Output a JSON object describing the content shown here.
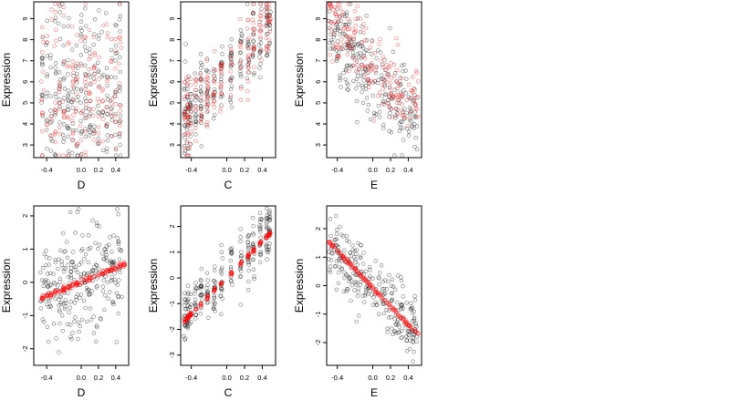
{
  "figure": {
    "colors": {
      "observed": "#000000",
      "fitted": "#ff0000",
      "frame": "#000000",
      "background": "#ffffff"
    }
  },
  "chart_data": [
    {
      "type": "scatter",
      "xlabel": "D",
      "ylabel": "Expression",
      "xlim": [
        -0.55,
        0.55
      ],
      "ylim": [
        2.4,
        9.8
      ],
      "xticks": [
        {
          "v": -0.4,
          "label": "-0.4"
        },
        {
          "v": 0.0,
          "label": "0.0"
        },
        {
          "v": 0.2,
          "label": "0.2"
        },
        {
          "v": 0.4,
          "label": "0.4"
        }
      ],
      "yticks": [
        {
          "v": 3,
          "label": "3"
        },
        {
          "v": 4,
          "label": "4"
        },
        {
          "v": 5,
          "label": "5"
        },
        {
          "v": 6,
          "label": "6"
        },
        {
          "v": 7,
          "label": "7"
        },
        {
          "v": 8,
          "label": "8"
        },
        {
          "v": 9,
          "label": "9"
        }
      ],
      "series": [
        {
          "role": "observed",
          "x_range": [
            -0.48,
            0.48
          ],
          "y_range": [
            2.6,
            9.4
          ],
          "x_levels": [
            -0.45,
            -0.4,
            -0.35,
            -0.3,
            -0.25,
            -0.2,
            -0.15,
            -0.1,
            -0.05,
            0.0,
            0.05,
            0.1,
            0.15,
            0.2,
            0.25,
            0.3,
            0.35,
            0.4,
            0.45
          ]
        },
        {
          "role": "fitted",
          "x_range": [
            -0.48,
            0.5
          ],
          "y_range": [
            4.3,
            9.3
          ],
          "x_levels": [
            -0.45,
            -0.4,
            -0.35,
            -0.3,
            -0.25,
            -0.2,
            -0.15,
            -0.1,
            -0.05,
            0.0,
            0.05,
            0.1,
            0.15,
            0.2,
            0.25,
            0.3,
            0.35,
            0.4,
            0.45
          ]
        }
      ]
    },
    {
      "type": "scatter",
      "xlabel": "C",
      "ylabel": "Expression",
      "xlim": [
        -0.52,
        0.55
      ],
      "ylim": [
        2.4,
        9.8
      ],
      "xticks": [
        {
          "v": -0.4,
          "label": "-0.4"
        },
        {
          "v": 0.0,
          "label": "0.0"
        },
        {
          "v": 0.2,
          "label": "0.2"
        },
        {
          "v": 0.4,
          "label": "0.4"
        }
      ],
      "yticks": [
        {
          "v": 3,
          "label": "3"
        },
        {
          "v": 4,
          "label": "4"
        },
        {
          "v": 5,
          "label": "5"
        },
        {
          "v": 6,
          "label": "6"
        },
        {
          "v": 7,
          "label": "7"
        },
        {
          "v": 8,
          "label": "8"
        },
        {
          "v": 9,
          "label": "9"
        }
      ],
      "series": [
        {
          "role": "observed",
          "x_levels": [
            -0.47,
            -0.44,
            -0.41,
            -0.35,
            -0.29,
            -0.22,
            -0.14,
            -0.06,
            0.05,
            0.16,
            0.24,
            0.3,
            0.38,
            0.45,
            0.48
          ],
          "trend": "increasing",
          "y_at_x_min": 4.4,
          "y_at_x_max": 8.6,
          "spread": 0.9
        },
        {
          "role": "fitted",
          "x_levels": [
            -0.47,
            -0.44,
            -0.41,
            -0.35,
            -0.29,
            -0.22,
            -0.14,
            -0.06,
            0.05,
            0.16,
            0.24,
            0.3,
            0.38,
            0.45,
            0.48
          ],
          "trend": "increasing",
          "y_at_x_min": 4.2,
          "y_at_x_max": 8.8,
          "spread": 0.9
        }
      ]
    },
    {
      "type": "scatter",
      "xlabel": "E",
      "ylabel": "Expression",
      "xlim": [
        -0.52,
        0.55
      ],
      "ylim": [
        2.4,
        9.8
      ],
      "xticks": [
        {
          "v": -0.4,
          "label": "-0.4"
        },
        {
          "v": 0.0,
          "label": "0.0"
        },
        {
          "v": 0.2,
          "label": "0.2"
        },
        {
          "v": 0.4,
          "label": "0.4"
        }
      ],
      "yticks": [
        {
          "v": 3,
          "label": "3"
        },
        {
          "v": 4,
          "label": "4"
        },
        {
          "v": 5,
          "label": "5"
        },
        {
          "v": 6,
          "label": "6"
        },
        {
          "v": 7,
          "label": "7"
        },
        {
          "v": 8,
          "label": "8"
        },
        {
          "v": 9,
          "label": "9"
        }
      ],
      "series": [
        {
          "role": "observed",
          "x_range": [
            -0.5,
            0.5
          ],
          "trend": "decreasing",
          "y_at_x_min": 8.6,
          "y_at_x_max": 4.0,
          "spread": 1.0
        },
        {
          "role": "fitted",
          "x_range": [
            -0.5,
            0.52
          ],
          "trend": "decreasing",
          "y_at_x_min": 8.8,
          "y_at_x_max": 4.6,
          "spread": 0.9
        }
      ]
    },
    {
      "type": "scatter",
      "xlabel": "D",
      "ylabel": "Expression",
      "xlim": [
        -0.55,
        0.55
      ],
      "ylim": [
        -2.5,
        2.3
      ],
      "xticks": [
        {
          "v": -0.4,
          "label": "-0.4"
        },
        {
          "v": 0.0,
          "label": "0.0"
        },
        {
          "v": 0.2,
          "label": "0.2"
        },
        {
          "v": 0.4,
          "label": "0.4"
        }
      ],
      "yticks": [
        {
          "v": -2,
          "label": "-2"
        },
        {
          "v": -1,
          "label": "-1"
        },
        {
          "v": 0,
          "label": "0"
        },
        {
          "v": 1,
          "label": "1"
        },
        {
          "v": 2,
          "label": "2"
        }
      ],
      "series": [
        {
          "role": "observed",
          "x_range": [
            -0.48,
            0.48
          ],
          "trend": "increasing",
          "y_at_x_min": -0.4,
          "y_at_x_max": 0.5,
          "spread": 0.85
        },
        {
          "role": "fitted",
          "x_levels": [
            -0.45,
            -0.4,
            -0.35,
            -0.3,
            -0.25,
            -0.2,
            -0.15,
            -0.1,
            -0.05,
            0.0,
            0.05,
            0.1,
            0.15,
            0.2,
            0.25,
            0.3,
            0.35,
            0.4,
            0.45,
            0.5
          ],
          "line": {
            "x0": -0.48,
            "y0": -0.5,
            "x1": 0.5,
            "y1": 0.55
          }
        }
      ]
    },
    {
      "type": "scatter",
      "xlabel": "C",
      "ylabel": "Expression",
      "xlim": [
        -0.52,
        0.55
      ],
      "ylim": [
        -3.4,
        2.8
      ],
      "xticks": [
        {
          "v": -0.4,
          "label": "-0.4"
        },
        {
          "v": 0.0,
          "label": "0.0"
        },
        {
          "v": 0.2,
          "label": "0.2"
        },
        {
          "v": 0.4,
          "label": "0.4"
        }
      ],
      "yticks": [
        {
          "v": -3,
          "label": "-3"
        },
        {
          "v": -2,
          "label": "-2"
        },
        {
          "v": -1,
          "label": "-1"
        },
        {
          "v": 0,
          "label": "0"
        },
        {
          "v": 1,
          "label": "1"
        },
        {
          "v": 2,
          "label": "2"
        }
      ],
      "series": [
        {
          "role": "observed",
          "x_levels": [
            -0.47,
            -0.44,
            -0.41,
            -0.35,
            -0.29,
            -0.22,
            -0.14,
            -0.06,
            0.05,
            0.16,
            0.24,
            0.3,
            0.38,
            0.45,
            0.48
          ],
          "trend": "increasing",
          "y_at_x_min": -1.5,
          "y_at_x_max": 1.9,
          "spread": 0.55
        },
        {
          "role": "fitted",
          "x_levels": [
            -0.47,
            -0.44,
            -0.41,
            -0.35,
            -0.29,
            -0.22,
            -0.14,
            -0.06,
            0.05,
            0.16,
            0.24,
            0.3,
            0.38,
            0.45,
            0.48
          ],
          "line": {
            "x0": -0.47,
            "y0": -1.65,
            "x1": 0.48,
            "y1": 1.7
          }
        }
      ]
    },
    {
      "type": "scatter",
      "xlabel": "E",
      "ylabel": "Expression",
      "xlim": [
        -0.52,
        0.55
      ],
      "ylim": [
        -2.8,
        2.8
      ],
      "xticks": [
        {
          "v": -0.4,
          "label": "-0.4"
        },
        {
          "v": 0.0,
          "label": "0.0"
        },
        {
          "v": 0.2,
          "label": "0.2"
        },
        {
          "v": 0.4,
          "label": "0.4"
        }
      ],
      "yticks": [
        {
          "v": -2,
          "label": "-2"
        },
        {
          "v": -1,
          "label": "-1"
        },
        {
          "v": 0,
          "label": "0"
        },
        {
          "v": 1,
          "label": "1"
        },
        {
          "v": 2,
          "label": "2"
        }
      ],
      "series": [
        {
          "role": "observed",
          "x_range": [
            -0.5,
            0.5
          ],
          "trend": "decreasing",
          "y_at_x_min": 1.6,
          "y_at_x_max": -1.7,
          "spread": 0.55
        },
        {
          "role": "fitted",
          "x_range": [
            -0.5,
            0.52
          ],
          "line": {
            "x0": -0.5,
            "y0": 1.55,
            "x1": 0.52,
            "y1": -1.75
          }
        }
      ]
    }
  ]
}
